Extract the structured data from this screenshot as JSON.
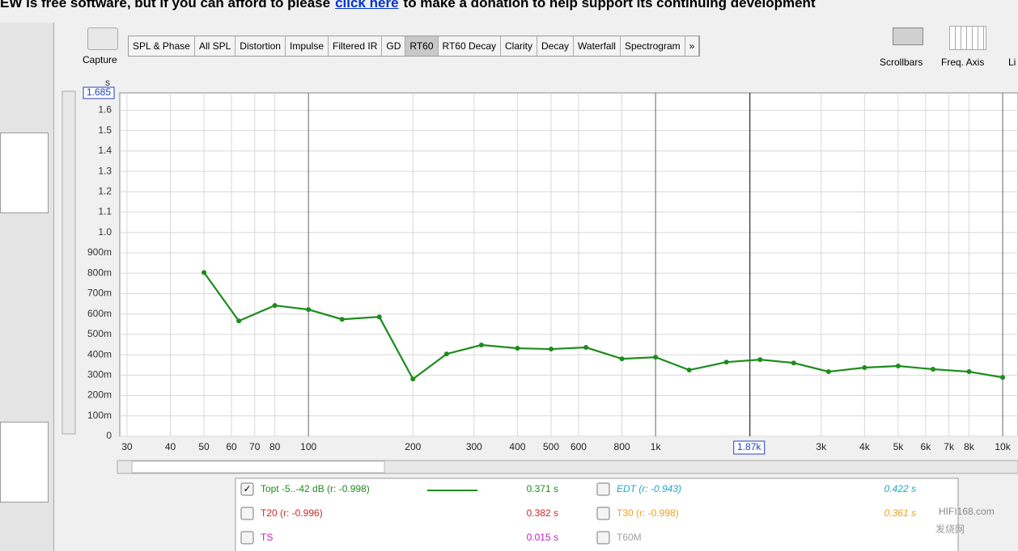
{
  "banner": {
    "before": "EW is free software, but if you can afford to please",
    "link": "click here",
    "after": "to make a donation to help support its continuing development"
  },
  "toolbar": {
    "capture": "Capture",
    "tabs": [
      "SPL & Phase",
      "All SPL",
      "Distortion",
      "Impulse",
      "Filtered IR",
      "GD",
      "RT60",
      "RT60 Decay",
      "Clarity",
      "Decay",
      "Waterfall",
      "Spectrogram",
      "»"
    ],
    "active": 6,
    "right": [
      "Scrollbars",
      "Freq. Axis",
      "Li"
    ]
  },
  "chart_data": {
    "type": "line",
    "y_unit": "s",
    "xscale": "log",
    "grid": true,
    "x": [
      50,
      63,
      80,
      100,
      125,
      160,
      200,
      250,
      315,
      400,
      500,
      630,
      800,
      1000,
      1250,
      1600,
      2000,
      2500,
      3150,
      4000,
      5000,
      6300,
      8000,
      10000
    ],
    "series": [
      {
        "name": "Topt -5..-42 dB (r: -0.998)",
        "color": "#1c8c1c",
        "values": [
          0.804,
          0.566,
          0.642,
          0.622,
          0.574,
          0.586,
          0.281,
          0.404,
          0.448,
          0.432,
          0.428,
          0.436,
          0.38,
          0.388,
          0.325,
          0.364,
          0.376,
          0.36,
          0.317,
          0.337,
          0.345,
          0.329,
          0.317,
          0.289
        ]
      }
    ],
    "xlim": [
      28.6,
      11070
    ],
    "ylim": [
      0,
      1.685
    ],
    "xticks": [
      30,
      40,
      50,
      60,
      70,
      80,
      100,
      200,
      300,
      400,
      500,
      600,
      800,
      {
        "value": 1000,
        "label": "1k"
      },
      {
        "value": 3000,
        "label": "3k"
      },
      {
        "value": 4000,
        "label": "4k"
      },
      {
        "value": 5000,
        "label": "5k"
      },
      {
        "value": 6000,
        "label": "6k"
      },
      {
        "value": 7000,
        "label": "7k"
      },
      {
        "value": 8000,
        "label": "8k"
      },
      {
        "value": 10000,
        "label": "10k"
      }
    ],
    "yticks": [
      0,
      {
        "value": 0.1,
        "label": "100m"
      },
      {
        "value": 0.2,
        "label": "200m"
      },
      {
        "value": 0.3,
        "label": "300m"
      },
      {
        "value": 0.4,
        "label": "400m"
      },
      {
        "value": 0.5,
        "label": "500m"
      },
      {
        "value": 0.6,
        "label": "600m"
      },
      {
        "value": 0.7,
        "label": "700m"
      },
      {
        "value": 0.8,
        "label": "800m"
      },
      {
        "value": 0.9,
        "label": "900m"
      },
      {
        "value": 1,
        "label": "1.0"
      },
      1.1,
      1.2,
      1.3,
      1.4,
      1.5,
      1.6
    ],
    "cursor": {
      "value": 1870,
      "label": "1.87k"
    }
  },
  "legend": {
    "value": "0.371 s",
    "rows": [
      {
        "label": "T20 (r: -0.996)",
        "value": "0.382 s",
        "color": "#d02828"
      },
      {
        "label": "TS",
        "value": "0.015 s",
        "color": "#c020c0"
      }
    ],
    "right": [
      {
        "label": "EDT (r: -0.943)",
        "value": "0.422 s",
        "color": "#20a8c8"
      },
      {
        "label": "T30 (r: -0.998)",
        "value": "0.361 s",
        "color": "#f0a020"
      },
      {
        "label": "T60M",
        "color": "#a0a0a0"
      }
    ]
  },
  "watermark": {
    "site": "HIFI168.com",
    "name": "发烧网"
  }
}
